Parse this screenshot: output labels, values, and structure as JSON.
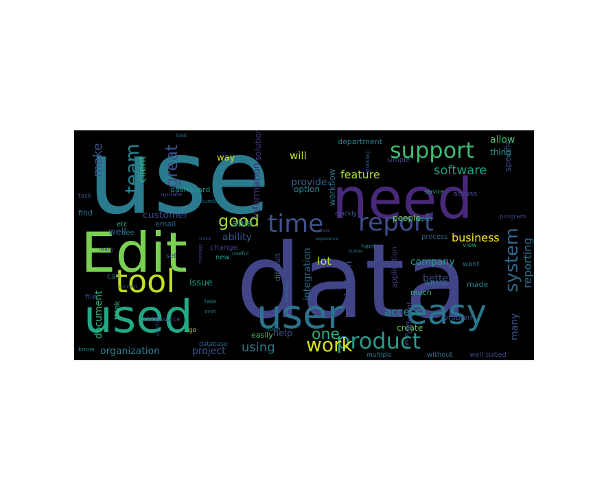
{
  "wordcloud": {
    "background": "#000000",
    "palette": [
      "#2d718e",
      "#3e4a89",
      "#46307e",
      "#472d7b",
      "#1f978b",
      "#21918c",
      "#35b779",
      "#6ece58",
      "#b5de2b",
      "#fde725"
    ],
    "words": [
      {
        "text": "use",
        "color": "#2b7b8e"
      },
      {
        "text": "data",
        "color": "#414487"
      },
      {
        "text": "need",
        "color": "#482878"
      },
      {
        "text": "Edit",
        "color": "#7ad151"
      },
      {
        "text": "used",
        "color": "#22a884"
      },
      {
        "text": "user",
        "color": "#2c728e"
      },
      {
        "text": "easy",
        "color": "#2a788e"
      },
      {
        "text": "tool",
        "color": "#c2df23"
      },
      {
        "text": "time",
        "color": "#3b528b"
      },
      {
        "text": "report",
        "color": "#3e4c8a"
      },
      {
        "text": "support",
        "color": "#3fbc73"
      },
      {
        "text": "product",
        "color": "#2a9b8a"
      },
      {
        "text": "team",
        "color": "#26828e"
      },
      {
        "text": "work",
        "color": "#d8e219"
      },
      {
        "text": "good",
        "color": "#a5db36"
      },
      {
        "text": "system",
        "color": "#31688e"
      },
      {
        "text": "one",
        "color": "#2db27d"
      },
      {
        "text": "great",
        "color": "#3b528b"
      },
      {
        "text": "using",
        "color": "#2a788e"
      },
      {
        "text": "software",
        "color": "#1fa187"
      },
      {
        "text": "feature",
        "color": "#addc30"
      },
      {
        "text": "make",
        "color": "#3b528b"
      },
      {
        "text": "access",
        "color": "#228c8d"
      },
      {
        "text": "business",
        "color": "#fde725"
      },
      {
        "text": "reporting",
        "color": "#2d708e"
      },
      {
        "text": "lot",
        "color": "#b8de29"
      },
      {
        "text": "company",
        "color": "#2a9b8a"
      },
      {
        "text": "allow",
        "color": "#4ac16d"
      },
      {
        "text": "client",
        "color": "#32b67a"
      },
      {
        "text": "will",
        "color": "#c8e020"
      },
      {
        "text": "organization",
        "color": "#26828e"
      },
      {
        "text": "project",
        "color": "#39558c"
      },
      {
        "text": "document",
        "color": "#2db27d"
      },
      {
        "text": "customer",
        "color": "#3e4989"
      },
      {
        "text": "information",
        "color": "#472a7a"
      },
      {
        "text": "platform",
        "color": "#3e4c8a"
      },
      {
        "text": "integration",
        "color": "#2e6f8e"
      },
      {
        "text": "many",
        "color": "#3a538b"
      },
      {
        "text": "better",
        "color": "#3e4989"
      },
      {
        "text": "provide",
        "color": "#34618d"
      },
      {
        "text": "ability",
        "color": "#38598c"
      },
      {
        "text": "able",
        "color": "#21908d"
      },
      {
        "text": "well",
        "color": "#34618d"
      },
      {
        "text": "way",
        "color": "#d2e21b"
      },
      {
        "text": "issue",
        "color": "#1fa187"
      },
      {
        "text": "help",
        "color": "#3a548c"
      },
      {
        "text": "dashboard",
        "color": "#20928c"
      },
      {
        "text": "specific",
        "color": "#3e4a89"
      },
      {
        "text": "solution",
        "color": "#46327e"
      },
      {
        "text": "people",
        "color": "#6ece58"
      },
      {
        "text": "option",
        "color": "#23898e"
      },
      {
        "text": "workflow",
        "color": "#2c738e"
      },
      {
        "text": "across",
        "color": "#3f4889"
      },
      {
        "text": "create",
        "color": "#5ec962"
      },
      {
        "text": "thing",
        "color": "#1f9e89"
      },
      {
        "text": "email",
        "color": "#33638d"
      },
      {
        "text": "department",
        "color": "#26828e"
      },
      {
        "text": "easily",
        "color": "#52c569"
      },
      {
        "text": "different",
        "color": "#3e4989"
      },
      {
        "text": "difficult",
        "color": "#3b528b"
      },
      {
        "text": "application",
        "color": "#433e85"
      },
      {
        "text": "find",
        "color": "#2a788e"
      },
      {
        "text": "call",
        "color": "#2c718e"
      },
      {
        "text": "file",
        "color": "#3e4a89"
      },
      {
        "text": "etc",
        "color": "#35b779"
      },
      {
        "text": "see",
        "color": "#2a788e"
      },
      {
        "text": "think",
        "color": "#2fb47c"
      },
      {
        "text": "set",
        "color": "#38598c"
      },
      {
        "text": "process",
        "color": "#33638d"
      },
      {
        "text": "change",
        "color": "#433e85"
      },
      {
        "text": "new",
        "color": "#1e9c89"
      },
      {
        "text": "problem",
        "color": "#3a548c"
      },
      {
        "text": "much",
        "color": "#2fb47c"
      },
      {
        "text": "within",
        "color": "#2a788e"
      },
      {
        "text": "made",
        "color": "#26828e"
      },
      {
        "text": "want",
        "color": "#29798e"
      },
      {
        "text": "view",
        "color": "#20a386"
      },
      {
        "text": "task",
        "color": "#3b528b"
      },
      {
        "text": "simple",
        "color": "#424086"
      },
      {
        "text": "update",
        "color": "#3f4788"
      },
      {
        "text": "quickly",
        "color": "#38588c"
      },
      {
        "text": "without",
        "color": "#2d708e"
      },
      {
        "text": "well suited",
        "color": "#3e4989"
      },
      {
        "text": "multiple",
        "color": "#2a788e"
      },
      {
        "text": "know",
        "color": "#26828e"
      },
      {
        "text": "database",
        "color": "#31668e"
      },
      {
        "text": "data source",
        "color": "#3a548c"
      },
      {
        "text": "number",
        "color": "#2a768e"
      },
      {
        "text": "look",
        "color": "#2c728e"
      },
      {
        "text": "hard",
        "color": "#27808e"
      },
      {
        "text": "needed",
        "color": "#3e4989"
      },
      {
        "text": "go",
        "color": "#a8db34"
      },
      {
        "text": "program",
        "color": "#3f4889"
      },
      {
        "text": "service",
        "color": "#27ad81"
      },
      {
        "text": "report",
        "color": "#21918c"
      },
      {
        "text": "training",
        "color": "#2d708e"
      },
      {
        "text": "connect",
        "color": "#3b528b"
      },
      {
        "text": "form",
        "color": "#29798e"
      },
      {
        "text": "manage",
        "color": "#433e85"
      },
      {
        "text": "take",
        "color": "#25848e"
      },
      {
        "text": "track",
        "color": "#3f4788"
      },
      {
        "text": "even",
        "color": "#2c728e"
      },
      {
        "text": "working",
        "color": "#34618d"
      },
      {
        "text": "useful",
        "color": "#26828e"
      },
      {
        "text": "interface",
        "color": "#3b528b"
      },
      {
        "text": "really",
        "color": "#424086"
      },
      {
        "text": "experience",
        "color": "#2d708e"
      },
      {
        "text": "share",
        "color": "#3e4989"
      },
      {
        "text": "group",
        "color": "#33638d"
      },
      {
        "text": "builder",
        "color": "#2a788e"
      }
    ]
  }
}
